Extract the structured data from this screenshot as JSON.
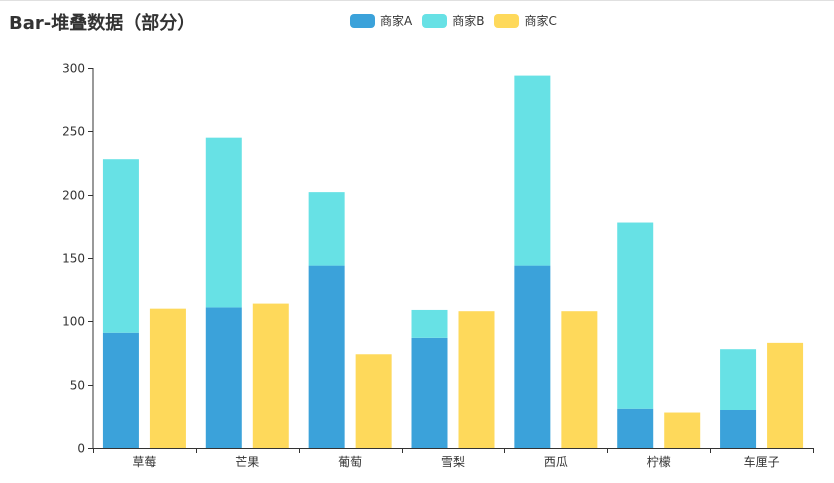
{
  "title": "Bar-堆叠数据（部分）",
  "legend": [
    {
      "label": "商家A",
      "color": "#3ba2da"
    },
    {
      "label": "商家B",
      "color": "#67e1e5"
    },
    {
      "label": "商家C",
      "color": "#fed95b"
    }
  ],
  "chart_data": {
    "type": "bar",
    "title": "Bar-堆叠数据（部分）",
    "xlabel": "",
    "ylabel": "",
    "categories": [
      "草莓",
      "芒果",
      "葡萄",
      "雪梨",
      "西瓜",
      "柠檬",
      "车厘子"
    ],
    "series": [
      {
        "name": "商家A",
        "stack": "stack1",
        "color": "#3ba2da",
        "values": [
          91,
          111,
          144,
          87,
          144,
          31,
          30
        ]
      },
      {
        "name": "商家B",
        "stack": "stack1",
        "color": "#67e1e5",
        "values": [
          137,
          134,
          58,
          22,
          150,
          147,
          48
        ]
      },
      {
        "name": "商家C",
        "stack": "stack2",
        "color": "#fed95b",
        "values": [
          110,
          114,
          74,
          108,
          108,
          28,
          83
        ]
      }
    ],
    "ylim": [
      0,
      300
    ],
    "yticks": [
      0,
      50,
      100,
      150,
      200,
      250,
      300
    ],
    "grid": false,
    "legend_position": "top"
  }
}
